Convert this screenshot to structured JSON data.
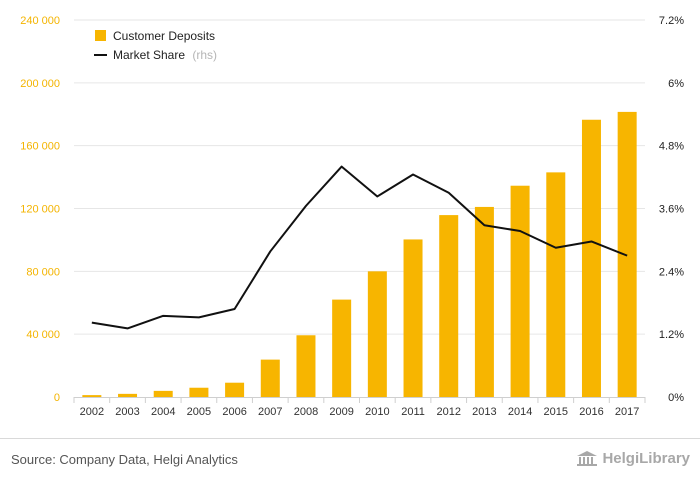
{
  "chart_data": {
    "type": "bar+line",
    "title": "",
    "categories": [
      "2002",
      "2003",
      "2004",
      "2005",
      "2006",
      "2007",
      "2008",
      "2009",
      "2010",
      "2011",
      "2012",
      "2013",
      "2014",
      "2015",
      "2016",
      "2017"
    ],
    "series": [
      {
        "name": "Customer Deposits",
        "kind": "bar",
        "axis": "left",
        "color": "#f7b500",
        "values": [
          1200,
          2000,
          3900,
          5900,
          9100,
          23800,
          39300,
          62000,
          80000,
          100300,
          115800,
          121000,
          134500,
          143000,
          176500,
          181500
        ]
      },
      {
        "name": "Market Share",
        "suffix": "(rhs)",
        "kind": "line",
        "axis": "right",
        "color": "#111111",
        "values": [
          1.42,
          1.31,
          1.55,
          1.52,
          1.68,
          2.78,
          3.65,
          4.4,
          3.83,
          4.25,
          3.9,
          3.28,
          3.17,
          2.85,
          2.97,
          2.7
        ]
      }
    ],
    "y_left": {
      "min": 0,
      "max": 240000,
      "ticks": [
        0,
        40000,
        80000,
        120000,
        160000,
        200000,
        240000
      ],
      "tick_labels": [
        "0",
        "40 000",
        "80 000",
        "120 000",
        "160 000",
        "200 000",
        "240 000"
      ],
      "color": "#f4b400"
    },
    "y_right": {
      "min": 0,
      "max": 7.2,
      "ticks": [
        0,
        1.2,
        2.4,
        3.6,
        4.8,
        6,
        7.2
      ],
      "tick_labels": [
        "0%",
        "1.2%",
        "2.4%",
        "3.6%",
        "4.8%",
        "6%",
        "7.2%"
      ],
      "color": "#222222"
    },
    "legend": {
      "position": "top-left",
      "items": [
        {
          "label": "Customer Deposits",
          "suffix": "",
          "symbol": "square",
          "color": "#f7b500"
        },
        {
          "label": "Market Share",
          "suffix": "(rhs)",
          "symbol": "line",
          "color": "#111111"
        }
      ]
    },
    "grid": true
  },
  "footer": {
    "source": "Source: Company Data, Helgi Analytics",
    "brand": "HelgiLibrary"
  },
  "icons": {
    "brand": "library-building-icon"
  }
}
